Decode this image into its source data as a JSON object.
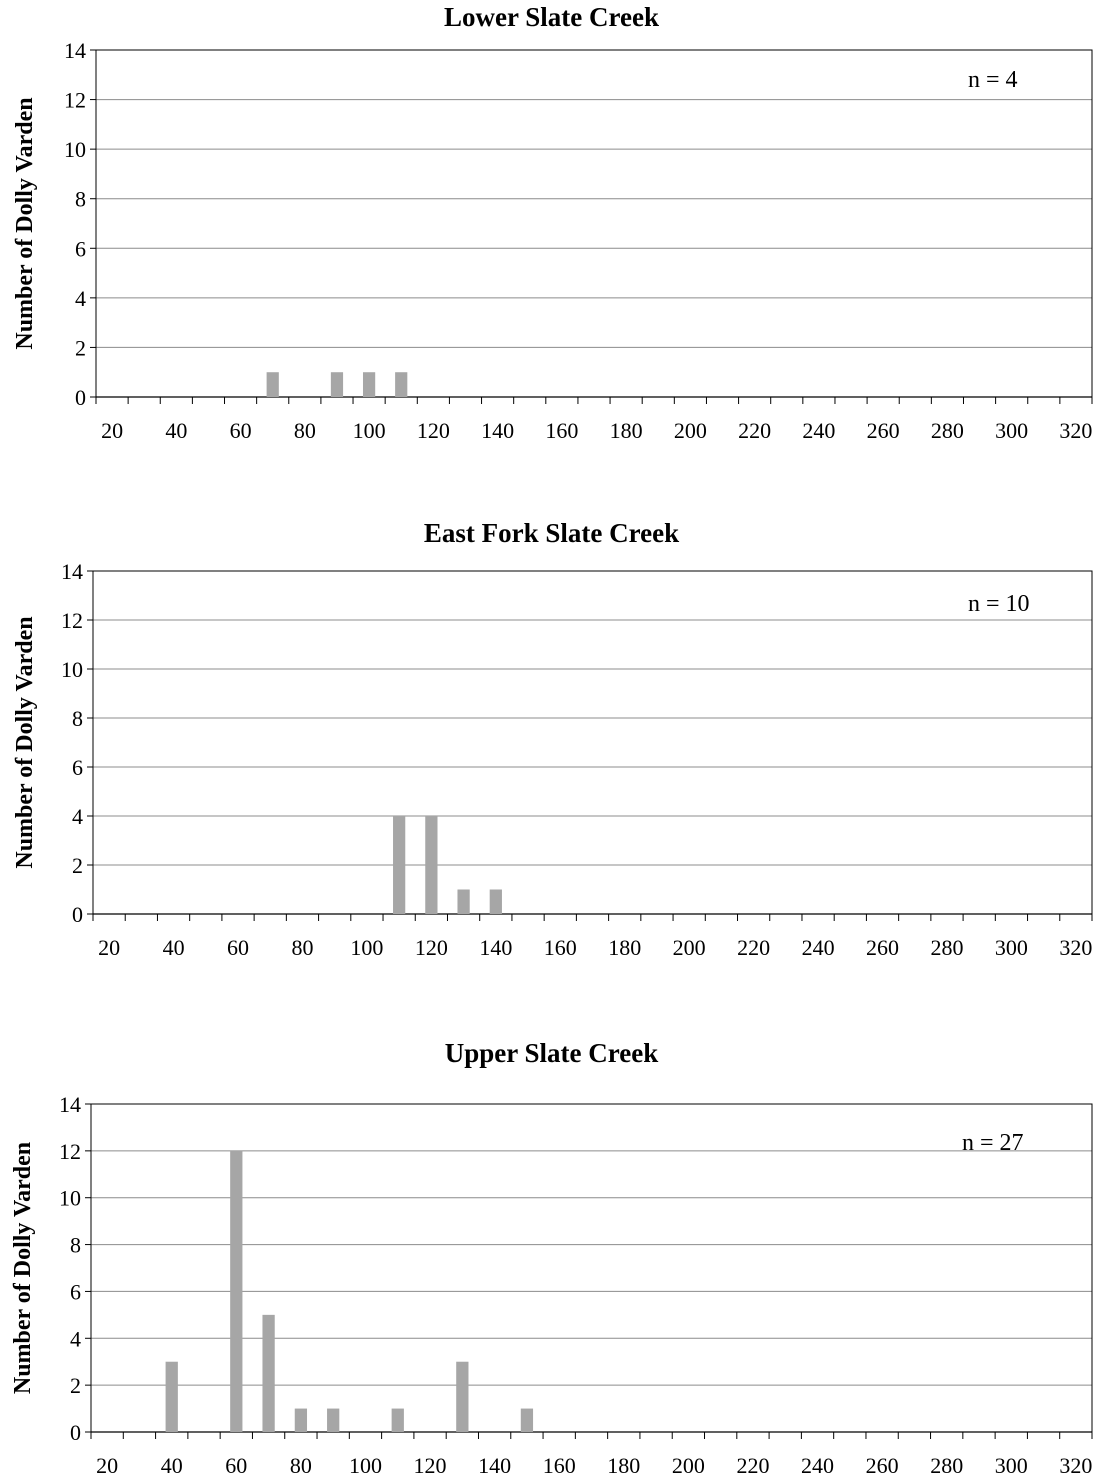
{
  "chart_data": [
    {
      "type": "bar",
      "title": "Lower Slate Creek",
      "ylabel": "Number of Dolly Varden",
      "xlabel": "",
      "annotation": "n = 4",
      "ylim": [
        0,
        14
      ],
      "y_ticks": [
        0,
        2,
        4,
        6,
        8,
        10,
        12,
        14
      ],
      "x_tick_labels": [
        20,
        40,
        60,
        80,
        100,
        120,
        140,
        160,
        180,
        200,
        220,
        240,
        260,
        280,
        300,
        320
      ],
      "x": [
        70,
        90,
        100,
        110
      ],
      "values": [
        1,
        1,
        1,
        1
      ],
      "bar_color": "#a6a6a6",
      "grid": true
    },
    {
      "type": "bar",
      "title": "East Fork Slate Creek",
      "ylabel": "Number of Dolly Varden",
      "xlabel": "",
      "annotation": "n = 10",
      "ylim": [
        0,
        14
      ],
      "y_ticks": [
        0,
        2,
        4,
        6,
        8,
        10,
        12,
        14
      ],
      "x_tick_labels": [
        20,
        40,
        60,
        80,
        100,
        120,
        140,
        160,
        180,
        200,
        220,
        240,
        260,
        280,
        300,
        320
      ],
      "x": [
        110,
        120,
        130,
        140
      ],
      "values": [
        4,
        4,
        1,
        1
      ],
      "bar_color": "#a6a6a6",
      "grid": true
    },
    {
      "type": "bar",
      "title": "Upper Slate Creek",
      "ylabel": "Number of Dolly Varden",
      "xlabel": "",
      "annotation": "n = 27",
      "ylim": [
        0,
        14
      ],
      "y_ticks": [
        0,
        2,
        4,
        6,
        8,
        10,
        12,
        14
      ],
      "x_tick_labels": [
        20,
        40,
        60,
        80,
        100,
        120,
        140,
        160,
        180,
        200,
        220,
        240,
        260,
        280,
        300,
        320
      ],
      "x": [
        40,
        60,
        70,
        80,
        90,
        110,
        130,
        150
      ],
      "values": [
        3,
        12,
        5,
        1,
        1,
        1,
        3,
        1
      ],
      "bar_color": "#a6a6a6",
      "grid": true
    }
  ]
}
